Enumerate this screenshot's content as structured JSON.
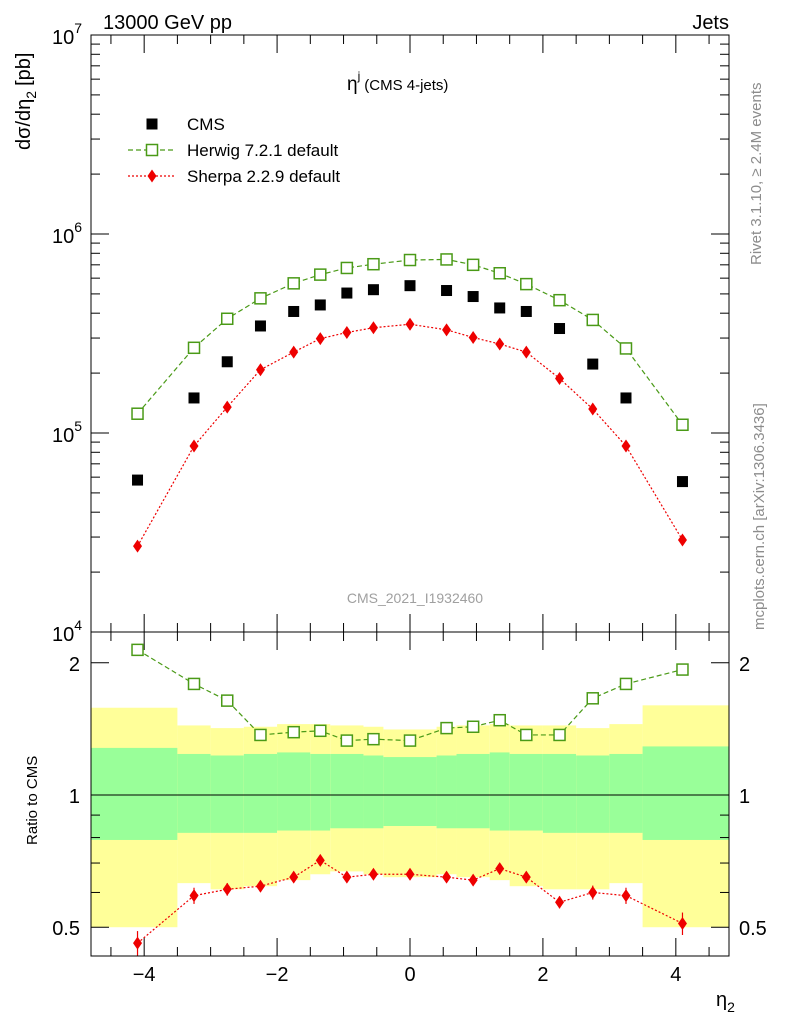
{
  "header": {
    "left": "13000 GeV pp",
    "right": "Jets"
  },
  "side": {
    "rivet": "Rivet 3.1.10, ≥ 2.4M events",
    "mcplots": "mcplots.cern.ch [arXiv:1306.3436]"
  },
  "watermark": "CMS_2021_I1932460",
  "colors": {
    "herwig": "#4a9a17",
    "sherpa": "#ee0000",
    "band_inner": "#99ff99",
    "band_outer": "#ffff99"
  },
  "chart_data": [
    {
      "type": "scatter",
      "title_main": "η",
      "title_sup": "j",
      "title_rest": "(CMS 4-jets)",
      "ylabel": "dσ/dη",
      "ylabel_sub": "2",
      "ylabel_unit": "[pb]",
      "yscale": "log",
      "xlim": [
        -4.8,
        4.8
      ],
      "ylim": [
        10000,
        10000000
      ],
      "y_ticks": [
        {
          "value": 10000,
          "base": "10",
          "exp": "4"
        },
        {
          "value": 100000,
          "base": "10",
          "exp": "5"
        },
        {
          "value": 1000000,
          "base": "10",
          "exp": "6"
        },
        {
          "value": 10000000,
          "base": "10",
          "exp": "7"
        }
      ],
      "legend_position": "top-left",
      "x": [
        -4.1,
        -3.25,
        -2.75,
        -2.25,
        -1.75,
        -1.35,
        -0.95,
        -0.55,
        0,
        0.55,
        0.95,
        1.35,
        1.75,
        2.25,
        2.75,
        3.25,
        4.1
      ],
      "series": [
        {
          "name": "CMS",
          "marker": "filled-square",
          "values": [
            58000,
            150000,
            228000,
            345000,
            408000,
            440000,
            505000,
            525000,
            550000,
            520000,
            485000,
            425000,
            408000,
            335000,
            222000,
            150000,
            57000
          ]
        },
        {
          "name": "Herwig 7.2.1 default",
          "marker": "open-square",
          "values": [
            125000,
            268000,
            375000,
            475000,
            565000,
            625000,
            675000,
            705000,
            740000,
            745000,
            700000,
            635000,
            560000,
            465000,
            370000,
            266000,
            110000
          ]
        },
        {
          "name": "Sherpa 2.2.9 default",
          "marker": "filled-diamond",
          "values": [
            27000,
            86000,
            135000,
            208000,
            255000,
            298000,
            320000,
            338000,
            352000,
            330000,
            302000,
            280000,
            255000,
            188000,
            132000,
            86000,
            29000
          ]
        }
      ]
    },
    {
      "type": "scatter",
      "ylabel": "Ratio to CMS",
      "xlabel": "η",
      "xlabel_sub": "2",
      "yscale": "log",
      "xlim": [
        -4.8,
        4.8
      ],
      "ylim": [
        0.43,
        2.35
      ],
      "x_ticks": [
        "−4",
        "−2",
        "0",
        "2",
        "4"
      ],
      "x_tick_values": [
        -4,
        -2,
        0,
        2,
        4
      ],
      "y_ticks": [
        "0.5",
        "1",
        "2"
      ],
      "y_tick_values": [
        0.5,
        1,
        2
      ],
      "reference_line": 1,
      "bands": {
        "edges": [
          -4.8,
          -3.5,
          -3.0,
          -2.5,
          -2.0,
          -1.5,
          -1.2,
          -0.7,
          -0.4,
          0.4,
          0.7,
          1.2,
          1.5,
          2.0,
          2.5,
          3.0,
          3.5,
          4.8
        ],
        "inner_low": [
          0.79,
          0.82,
          0.82,
          0.82,
          0.83,
          0.83,
          0.84,
          0.84,
          0.85,
          0.84,
          0.84,
          0.83,
          0.83,
          0.82,
          0.82,
          0.82,
          0.79
        ],
        "inner_high": [
          1.28,
          1.24,
          1.23,
          1.24,
          1.25,
          1.24,
          1.24,
          1.23,
          1.22,
          1.23,
          1.24,
          1.25,
          1.24,
          1.24,
          1.23,
          1.24,
          1.29
        ],
        "outer_low": [
          0.5,
          0.63,
          0.61,
          0.62,
          0.64,
          0.66,
          0.67,
          0.66,
          0.65,
          0.66,
          0.65,
          0.64,
          0.62,
          0.61,
          0.61,
          0.63,
          0.5
        ],
        "outer_high": [
          1.58,
          1.44,
          1.42,
          1.43,
          1.45,
          1.45,
          1.44,
          1.43,
          1.41,
          1.43,
          1.44,
          1.45,
          1.44,
          1.44,
          1.42,
          1.45,
          1.6
        ]
      },
      "x": [
        -4.1,
        -3.25,
        -2.75,
        -2.25,
        -1.75,
        -1.35,
        -0.95,
        -0.55,
        0,
        0.55,
        0.95,
        1.35,
        1.75,
        2.25,
        2.75,
        3.25,
        4.1
      ],
      "series": [
        {
          "name": "Herwig 7.2.1 default",
          "marker": "open-square",
          "values": [
            2.14,
            1.79,
            1.64,
            1.37,
            1.39,
            1.4,
            1.33,
            1.34,
            1.33,
            1.42,
            1.43,
            1.48,
            1.37,
            1.37,
            1.66,
            1.79,
            1.93
          ]
        },
        {
          "name": "Sherpa 2.2.9 default",
          "marker": "filled-diamond",
          "values": [
            0.46,
            0.59,
            0.61,
            0.62,
            0.65,
            0.71,
            0.65,
            0.66,
            0.66,
            0.65,
            0.64,
            0.68,
            0.65,
            0.57,
            0.6,
            0.59,
            0.51
          ],
          "errors": [
            0.03,
            0.025,
            0.02,
            0.018,
            0.018,
            0.018,
            0.016,
            0.016,
            0.016,
            0.016,
            0.016,
            0.018,
            0.018,
            0.018,
            0.022,
            0.025,
            0.03
          ]
        }
      ]
    }
  ]
}
